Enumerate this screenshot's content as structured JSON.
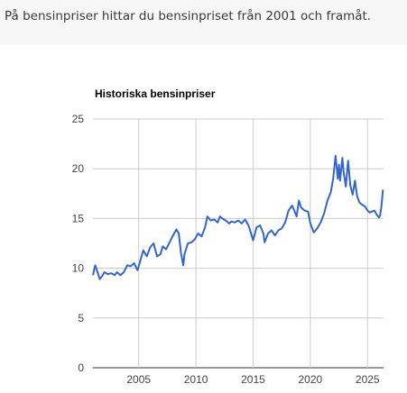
{
  "intro_text": "På bensinpriser hittar du bensinpriset från 2001 och framåt.",
  "chart_data": {
    "type": "line",
    "title": "Historiska bensinpriser",
    "xlabel": "",
    "ylabel": "",
    "xlim": [
      2001,
      2026.4
    ],
    "ylim": [
      0,
      25
    ],
    "yticks": [
      0,
      5,
      10,
      15,
      20,
      25
    ],
    "xticks": [
      2005,
      2010,
      2015,
      2020,
      2025
    ],
    "grid": true,
    "line_color": "#3366cc",
    "series": [
      {
        "x": [
          2001.0,
          2001.2,
          2001.4,
          2001.6,
          2001.8,
          2002.0,
          2002.3,
          2002.6,
          2002.9,
          2003.1,
          2003.4,
          2003.7,
          2004.0,
          2004.3,
          2004.6,
          2004.9,
          2005.1,
          2005.4,
          2005.7,
          2006.0,
          2006.3,
          2006.6,
          2006.9,
          2007.1,
          2007.4,
          2007.7,
          2008.0,
          2008.3,
          2008.5,
          2008.7,
          2008.9,
          2009.0,
          2009.3,
          2009.6,
          2009.9,
          2010.2,
          2010.5,
          2010.8,
          2011.0,
          2011.3,
          2011.6,
          2011.9,
          2012.1,
          2012.3,
          2012.6,
          2012.9,
          2013.1,
          2013.4,
          2013.7,
          2014.0,
          2014.3,
          2014.6,
          2014.9,
          2015.0,
          2015.3,
          2015.6,
          2015.9,
          2016.0,
          2016.3,
          2016.6,
          2016.9,
          2017.2,
          2017.5,
          2017.8,
          2018.1,
          2018.4,
          2018.6,
          2018.8,
          2019.0,
          2019.2,
          2019.5,
          2019.8,
          2020.0,
          2020.3,
          2020.6,
          2020.9,
          2021.2,
          2021.5,
          2021.8,
          2022.0,
          2022.2,
          2022.4,
          2022.5,
          2022.6,
          2022.8,
          2022.9,
          2023.1,
          2023.3,
          2023.5,
          2023.7,
          2023.9,
          2024.1,
          2024.3,
          2024.5,
          2024.8,
          2025.0,
          2025.2,
          2025.4,
          2025.6,
          2025.8,
          2026.0,
          2026.1,
          2026.2,
          2026.35
        ],
        "y": [
          9.3,
          10.3,
          9.6,
          8.9,
          9.2,
          9.6,
          9.4,
          9.5,
          9.3,
          9.6,
          9.3,
          9.6,
          10.3,
          10.2,
          10.5,
          9.8,
          10.6,
          11.8,
          11.2,
          12.1,
          12.5,
          11.2,
          11.4,
          12.2,
          11.9,
          12.6,
          13.3,
          13.9,
          13.5,
          11.5,
          10.3,
          11.4,
          12.5,
          12.6,
          12.9,
          13.5,
          13.2,
          14.1,
          15.2,
          14.8,
          14.9,
          14.6,
          15.2,
          15.0,
          14.8,
          14.5,
          14.7,
          14.6,
          14.8,
          14.5,
          14.9,
          14.3,
          13.2,
          12.8,
          14.1,
          14.3,
          13.5,
          12.6,
          13.5,
          13.8,
          13.3,
          13.8,
          14.0,
          14.6,
          15.8,
          16.3,
          15.8,
          15.2,
          16.8,
          16.1,
          15.8,
          15.7,
          14.5,
          13.6,
          14.0,
          14.6,
          15.5,
          16.8,
          17.7,
          19.0,
          21.3,
          19.0,
          20.4,
          18.8,
          21.1,
          19.8,
          18.2,
          20.8,
          18.3,
          17.4,
          18.8,
          17.2,
          16.6,
          16.4,
          16.2,
          15.8,
          15.6,
          15.7,
          15.8,
          15.4,
          15.1,
          15.3,
          16.1,
          17.9
        ]
      }
    ]
  }
}
